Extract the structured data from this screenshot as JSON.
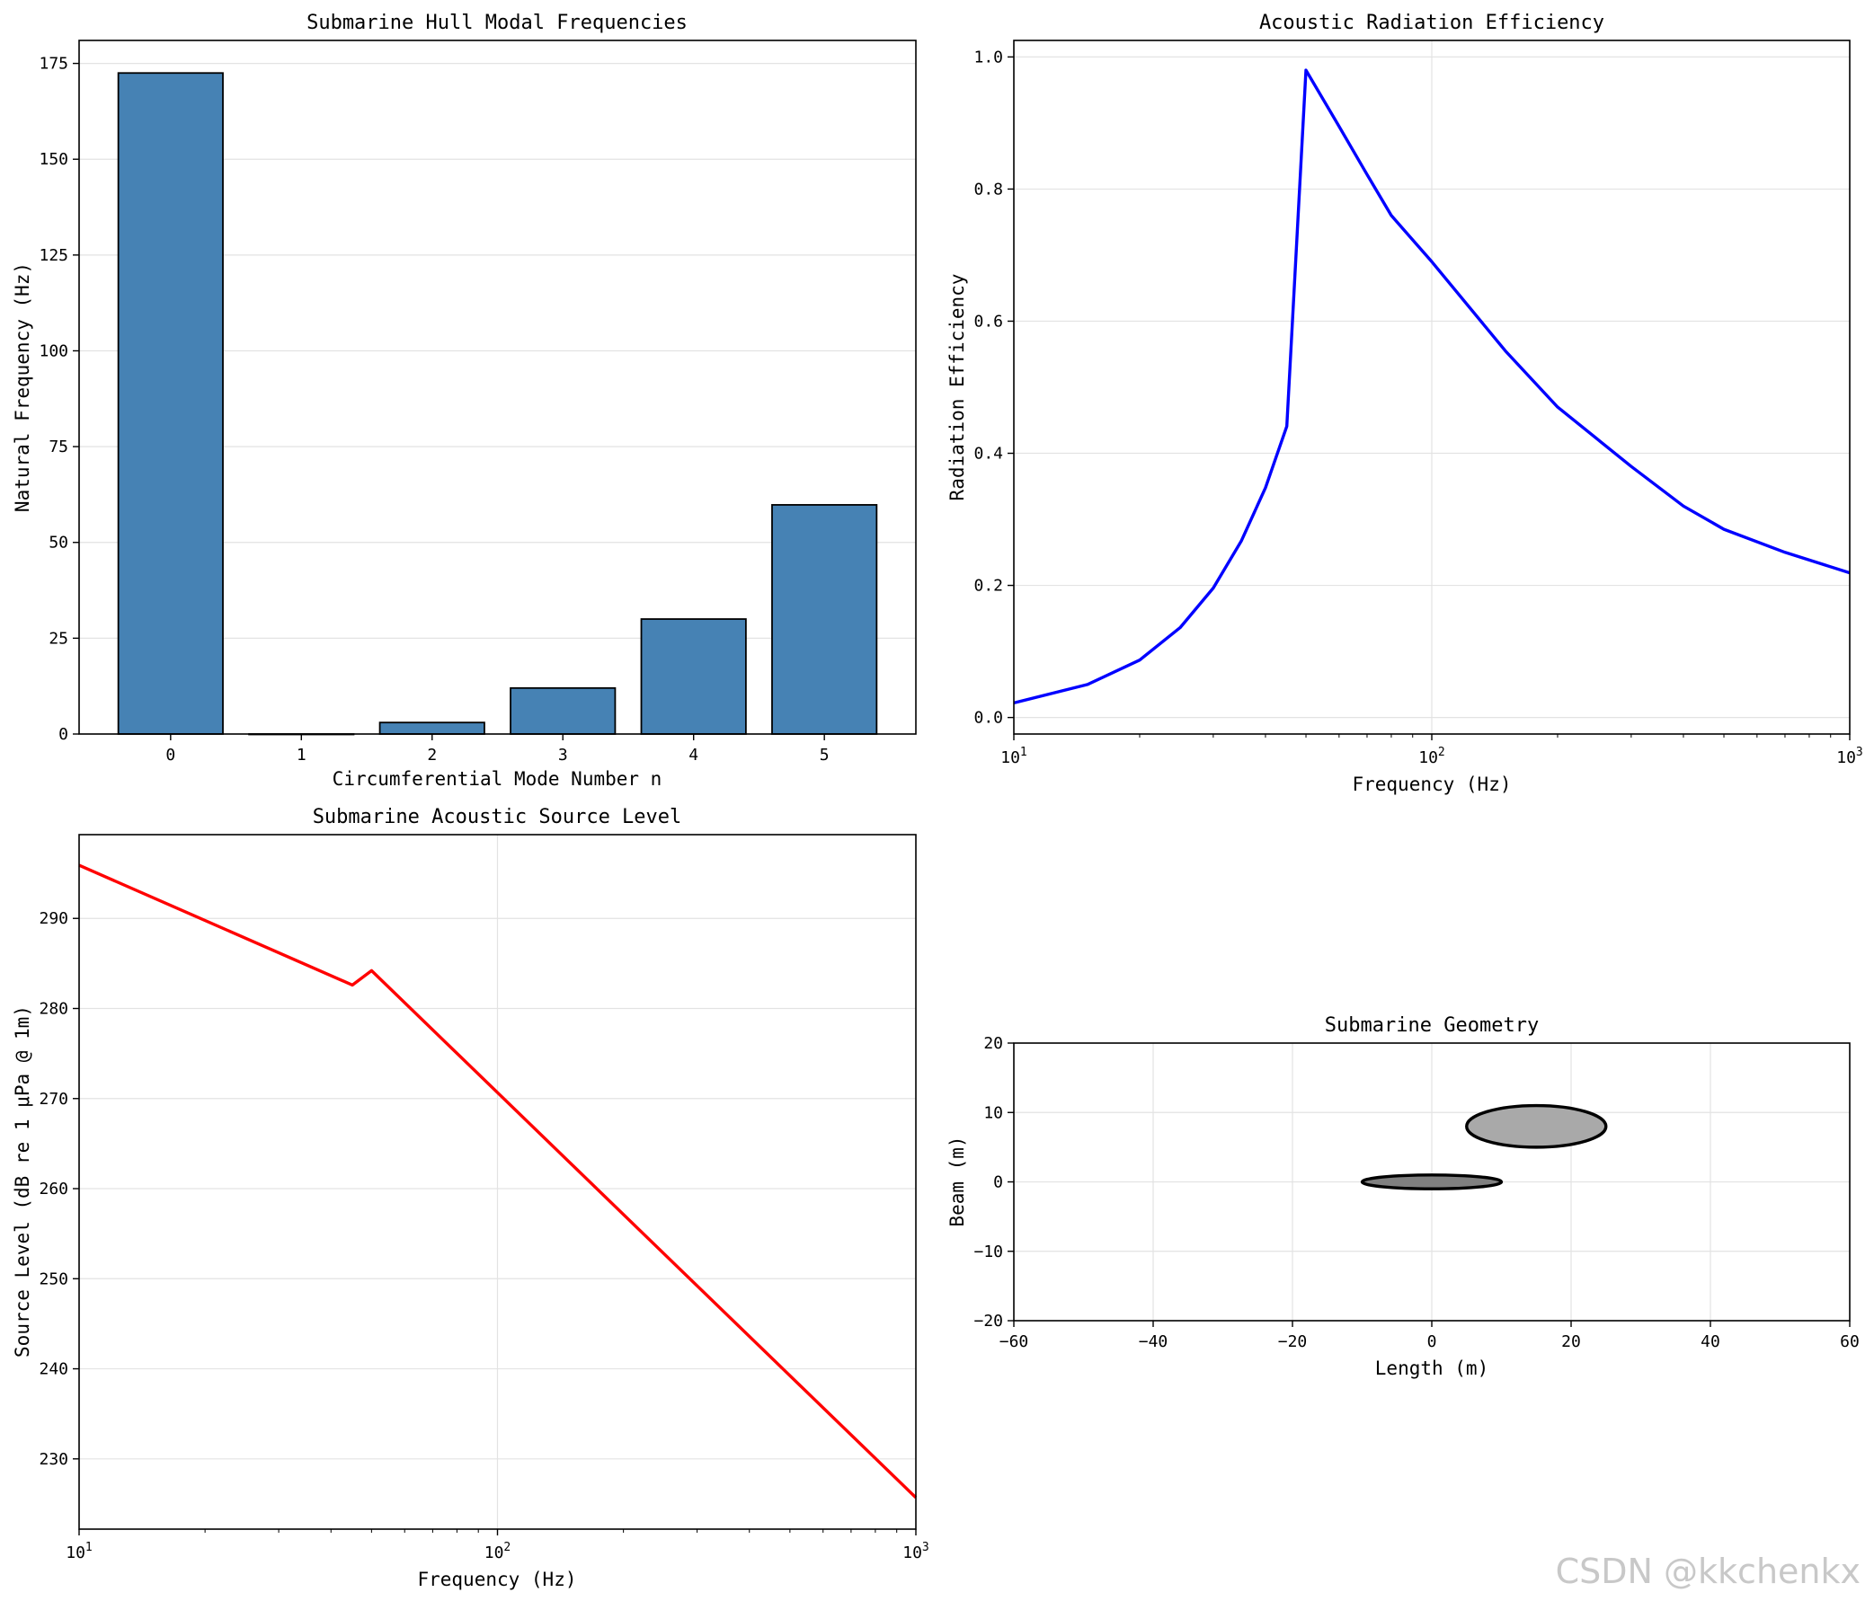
{
  "watermark": "CSDN @kkchenkx",
  "chart_data": [
    {
      "type": "bar",
      "title": "Submarine Hull Modal Frequencies",
      "xlabel": "Circumferential Mode Number n",
      "ylabel": "Natural Frequency (Hz)",
      "categories": [
        "0",
        "1",
        "2",
        "3",
        "4",
        "5"
      ],
      "values": [
        172.5,
        0,
        3,
        12,
        30,
        59.8
      ],
      "yticks": [
        "0",
        "25",
        "50",
        "75",
        "100",
        "125",
        "150",
        "175"
      ],
      "ylim": [
        0,
        181
      ],
      "bar_color": "#4682b4",
      "grid": "y"
    },
    {
      "type": "line",
      "title": "Acoustic Radiation Efficiency",
      "xlabel": "Frequency (Hz)",
      "ylabel": "Radiation Efficiency",
      "xscale": "log",
      "xlim": [
        10,
        1000
      ],
      "ylim": [
        -0.025,
        1.025
      ],
      "xticks": [
        {
          "base": "10",
          "exp": "1"
        },
        {
          "base": "10",
          "exp": "2"
        },
        {
          "base": "10",
          "exp": "3"
        }
      ],
      "yticks": [
        "0.0",
        "0.2",
        "0.4",
        "0.6",
        "0.8",
        "1.0"
      ],
      "color": "#0000ff",
      "x": [
        10,
        15,
        20,
        25,
        30,
        35,
        40,
        45,
        50,
        60,
        70,
        80,
        100,
        150,
        200,
        300,
        400,
        500,
        700,
        1000
      ],
      "y": [
        0.022,
        0.05,
        0.087,
        0.136,
        0.196,
        0.267,
        0.348,
        0.441,
        0.98,
        0.895,
        0.822,
        0.76,
        0.69,
        0.555,
        0.47,
        0.38,
        0.32,
        0.285,
        0.25,
        0.219
      ]
    },
    {
      "type": "line",
      "title": "Submarine Acoustic Source Level",
      "xlabel": "Frequency (Hz)",
      "ylabel": "Source Level (dB re 1 μPa @ 1m)",
      "xscale": "log",
      "xlim": [
        10,
        1000
      ],
      "ylim": [
        222.2,
        299.3
      ],
      "xticks": [
        {
          "base": "10",
          "exp": "1"
        },
        {
          "base": "10",
          "exp": "2"
        },
        {
          "base": "10",
          "exp": "3"
        }
      ],
      "yticks": [
        "230",
        "240",
        "250",
        "260",
        "270",
        "280",
        "290"
      ],
      "color": "#ff0000",
      "x": [
        10,
        45,
        50,
        1000
      ],
      "y": [
        295.9,
        282.6,
        284.2,
        225.7
      ]
    },
    {
      "type": "scatter",
      "title": "Submarine Geometry",
      "xlabel": "Length (m)",
      "ylabel": "Beam (m)",
      "xlim": [
        -60,
        60
      ],
      "ylim": [
        -20,
        20
      ],
      "xticks": [
        "−60",
        "−40",
        "−20",
        "0",
        "20",
        "40",
        "60"
      ],
      "yticks": [
        "−20",
        "−10",
        "0",
        "10",
        "20"
      ],
      "shapes": [
        {
          "name": "hull",
          "cx": 0,
          "cy": 0,
          "length": 20,
          "beam": 2,
          "fill": "#808080"
        },
        {
          "name": "sail",
          "cx": 15,
          "cy": 8,
          "length": 20,
          "beam": 6,
          "fill": "#a9a9a9"
        }
      ]
    }
  ]
}
